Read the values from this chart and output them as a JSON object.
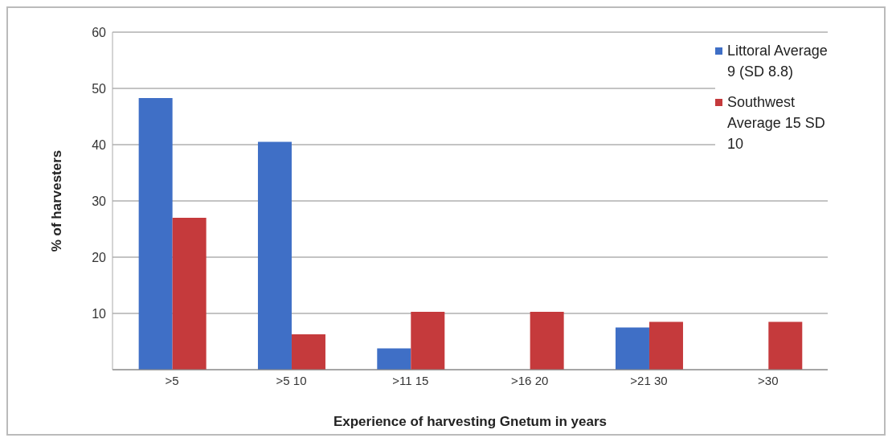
{
  "chart_data": {
    "type": "bar",
    "xlabel": "Experience of harvesting Gnetum in years",
    "ylabel": "% of harvesters",
    "categories": [
      ">5",
      ">5 10",
      ">11 15",
      ">16 20",
      ">21 30",
      ">30"
    ],
    "series": [
      {
        "name": "Littoral Average 9 (SD 8.8)",
        "color": "#3f6fc6",
        "values": [
          48.3,
          40.5,
          3.8,
          0,
          7.5,
          0
        ]
      },
      {
        "name": "Southwest Average 15 SD 10",
        "color": "#c53a3c",
        "values": [
          27,
          6.3,
          10.3,
          10.3,
          8.5,
          8.5
        ]
      }
    ],
    "ylim": [
      0,
      60
    ],
    "yticks": [
      10,
      20,
      30,
      40,
      50,
      60
    ],
    "grid": "y",
    "legend": "top right"
  }
}
